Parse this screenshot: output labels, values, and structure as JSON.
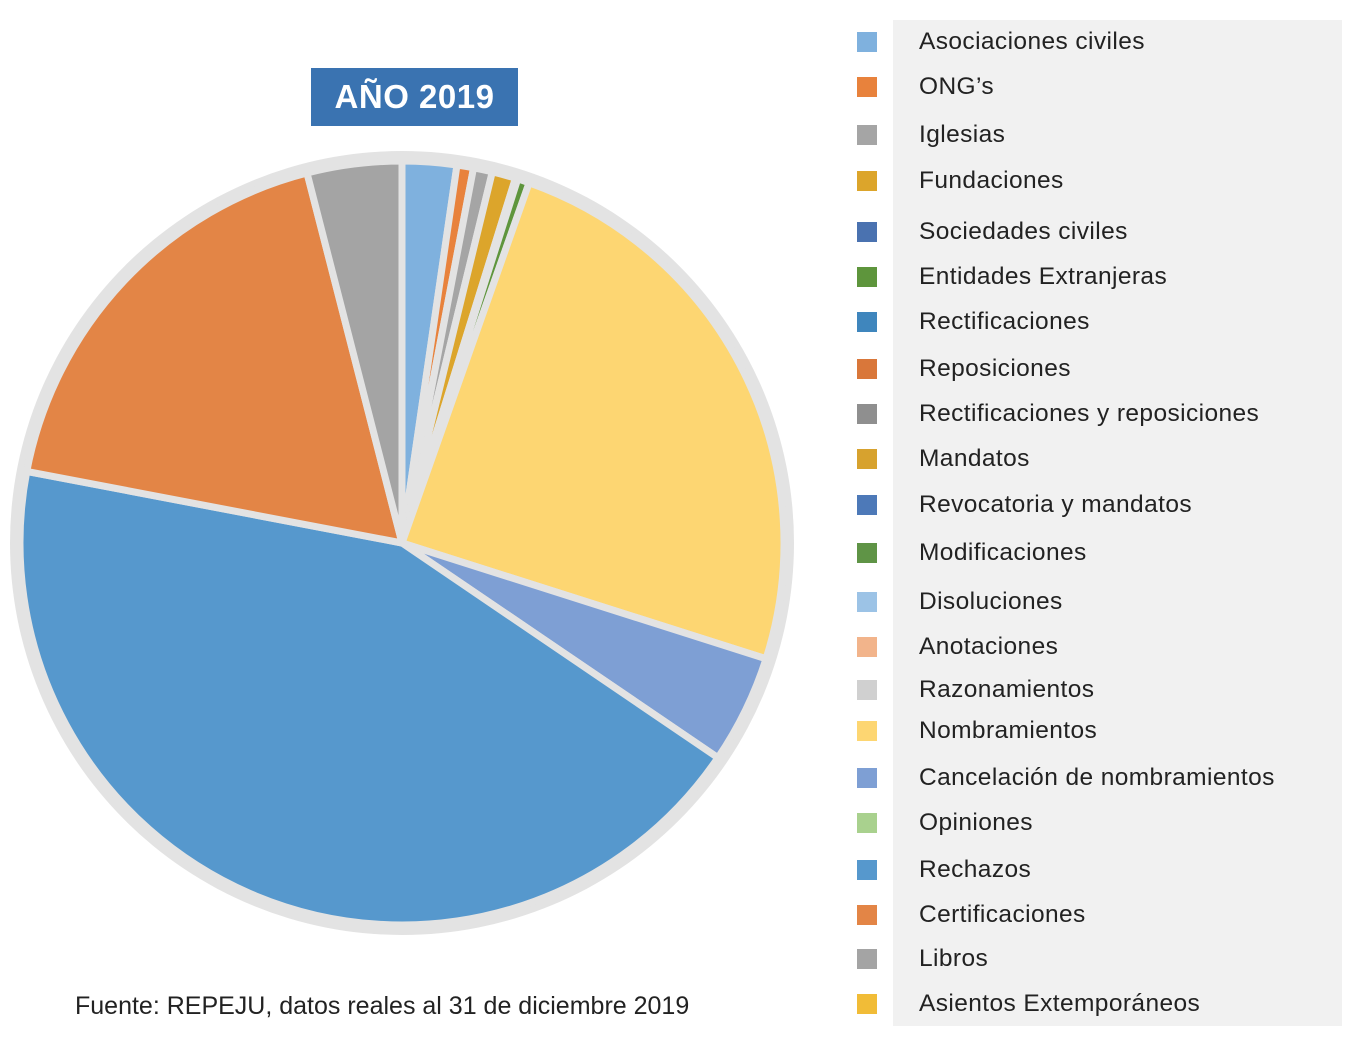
{
  "chart_data": {
    "type": "pie",
    "title": "AÑO 2019",
    "source": "Fuente: REPEJU, datos reales al 31 de diciembre 2019",
    "legend_position": "right",
    "slices": [
      {
        "label": "Asociaciones civiles",
        "value": 2.3,
        "color": "#7fb1de"
      },
      {
        "label": "ONG’s",
        "value": 0.7,
        "color": "#e8823c"
      },
      {
        "label": "Iglesias",
        "value": 0.8,
        "color": "#a5a5a5"
      },
      {
        "label": "Fundaciones",
        "value": 1.0,
        "color": "#dca52b"
      },
      {
        "label": "Sociedades civiles",
        "value": 0.1,
        "color": "#4a72b0"
      },
      {
        "label": "Entidades Extranjeras",
        "value": 0.5,
        "color": "#5e953c"
      },
      {
        "label": "Rectificaciones",
        "value": 0.0,
        "color": "#3f86bd"
      },
      {
        "label": "Reposiciones",
        "value": 0.0,
        "color": "#d9773a"
      },
      {
        "label": "Rectificaciones y reposiciones",
        "value": 0.0,
        "color": "#8f8f8f"
      },
      {
        "label": "Mandatos",
        "value": 0.0,
        "color": "#d7a22e"
      },
      {
        "label": "Revocatoria y mandatos",
        "value": 0.0,
        "color": "#4d79b8"
      },
      {
        "label": "Modificaciones",
        "value": 0.0,
        "color": "#5f9446"
      },
      {
        "label": "Disoluciones",
        "value": 0.0,
        "color": "#9cc3e6"
      },
      {
        "label": "Anotaciones",
        "value": 0.0,
        "color": "#f2b48b"
      },
      {
        "label": "Razonamientos",
        "value": 0.0,
        "color": "#d0d0d0"
      },
      {
        "label": "Nombramientos",
        "value": 24.5,
        "color": "#fdd672"
      },
      {
        "label": "Cancelación de nombramientos",
        "value": 4.6,
        "color": "#7e9fd4"
      },
      {
        "label": "Opiniones",
        "value": 0.0,
        "color": "#a9d18e"
      },
      {
        "label": "Rechazos",
        "value": 43.5,
        "color": "#5698cd"
      },
      {
        "label": "Certificaciones",
        "value": 18.0,
        "color": "#e38546"
      },
      {
        "label": "Libros",
        "value": 4.0,
        "color": "#a4a4a4"
      },
      {
        "label": "Asientos Extemporáneos",
        "value": 0.0,
        "color": "#f1bc37"
      }
    ]
  }
}
